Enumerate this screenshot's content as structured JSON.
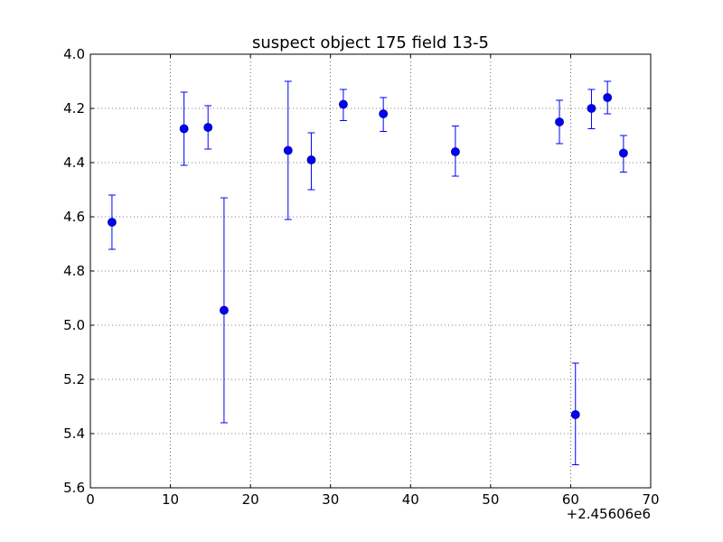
{
  "chart_data": {
    "type": "scatter",
    "title": "suspect object 175 field 13-5",
    "xlabel": "",
    "ylabel": "",
    "x_offset_label": "+2.45606e6",
    "xlim": [
      0,
      70
    ],
    "ylim": [
      5.6,
      4.0
    ],
    "y_inverted": true,
    "grid": true,
    "x_ticks": [
      "0",
      "10",
      "20",
      "30",
      "40",
      "50",
      "60",
      "70"
    ],
    "y_ticks": [
      "4.0",
      "4.2",
      "4.4",
      "4.6",
      "4.8",
      "5.0",
      "5.2",
      "5.4",
      "5.6"
    ],
    "marker_color": "#0000ff",
    "points": [
      {
        "x": 2.7,
        "y": 4.62,
        "err_low": 4.52,
        "err_high": 4.72
      },
      {
        "x": 11.7,
        "y": 4.275,
        "err_low": 4.14,
        "err_high": 4.41
      },
      {
        "x": 14.7,
        "y": 4.27,
        "err_low": 4.19,
        "err_high": 4.35
      },
      {
        "x": 16.7,
        "y": 4.945,
        "err_low": 4.53,
        "err_high": 5.36
      },
      {
        "x": 24.7,
        "y": 4.355,
        "err_low": 4.1,
        "err_high": 4.61
      },
      {
        "x": 27.6,
        "y": 4.39,
        "err_low": 4.29,
        "err_high": 4.5
      },
      {
        "x": 31.6,
        "y": 4.185,
        "err_low": 4.13,
        "err_high": 4.245
      },
      {
        "x": 36.6,
        "y": 4.22,
        "err_low": 4.16,
        "err_high": 4.285
      },
      {
        "x": 45.6,
        "y": 4.36,
        "err_low": 4.265,
        "err_high": 4.45
      },
      {
        "x": 58.6,
        "y": 4.25,
        "err_low": 4.17,
        "err_high": 4.33
      },
      {
        "x": 60.6,
        "y": 5.33,
        "err_low": 5.14,
        "err_high": 5.515
      },
      {
        "x": 62.6,
        "y": 4.2,
        "err_low": 4.13,
        "err_high": 4.275
      },
      {
        "x": 64.6,
        "y": 4.16,
        "err_low": 4.1,
        "err_high": 4.22
      },
      {
        "x": 66.6,
        "y": 4.365,
        "err_low": 4.3,
        "err_high": 4.435
      }
    ]
  }
}
